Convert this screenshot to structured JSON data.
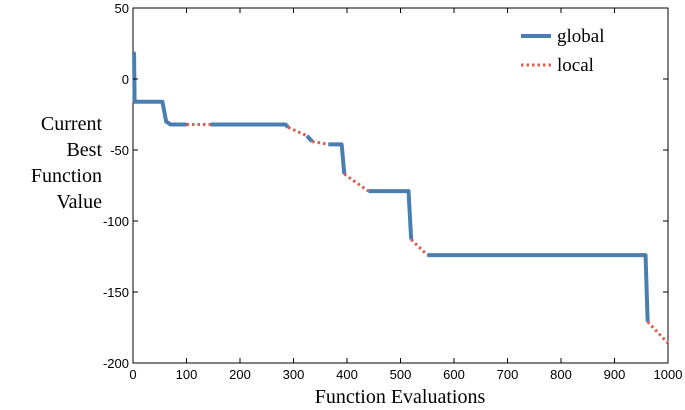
{
  "chart_data": {
    "type": "line",
    "xlabel": "Function Evaluations",
    "ylabel": [
      "Current",
      "Best",
      "Function",
      "Value"
    ],
    "xlim": [
      0,
      1000
    ],
    "ylim": [
      -200,
      50
    ],
    "xticks": [
      0,
      100,
      200,
      300,
      400,
      500,
      600,
      700,
      800,
      900,
      1000
    ],
    "yticks": [
      50,
      0,
      -50,
      -100,
      -150,
      -200
    ],
    "grid": false,
    "legend_position": "top-right",
    "series": [
      {
        "name": "global",
        "color": "#4a7eb0",
        "style": "solid",
        "segments": [
          [
            [
              0,
              18
            ],
            [
              2,
              18
            ],
            [
              3,
              -16
            ],
            [
              55,
              -16
            ],
            [
              62,
              -30
            ],
            [
              70,
              -32
            ],
            [
              100,
              -32
            ]
          ],
          [
            [
              145,
              -32
            ],
            [
              285,
              -32
            ],
            [
              290,
              -34
            ]
          ],
          [
            [
              325,
              -40
            ],
            [
              335,
              -44
            ]
          ],
          [
            [
              365,
              -46
            ],
            [
              390,
              -46
            ],
            [
              395,
              -67
            ]
          ],
          [
            [
              440,
              -79
            ],
            [
              515,
              -79
            ],
            [
              520,
              -113
            ]
          ],
          [
            [
              550,
              -124
            ],
            [
              958,
              -124
            ],
            [
              962,
              -171
            ]
          ]
        ]
      },
      {
        "name": "local",
        "color": "#e05a4e",
        "style": "dotted",
        "segments": [
          [
            [
              100,
              -32
            ],
            [
              145,
              -32
            ]
          ],
          [
            [
              290,
              -34
            ],
            [
              325,
              -40
            ]
          ],
          [
            [
              335,
              -44
            ],
            [
              365,
              -46
            ]
          ],
          [
            [
              395,
              -67
            ],
            [
              440,
              -79
            ]
          ],
          [
            [
              520,
              -113
            ],
            [
              550,
              -124
            ]
          ],
          [
            [
              962,
              -171
            ],
            [
              1000,
              -186
            ]
          ]
        ]
      }
    ]
  }
}
